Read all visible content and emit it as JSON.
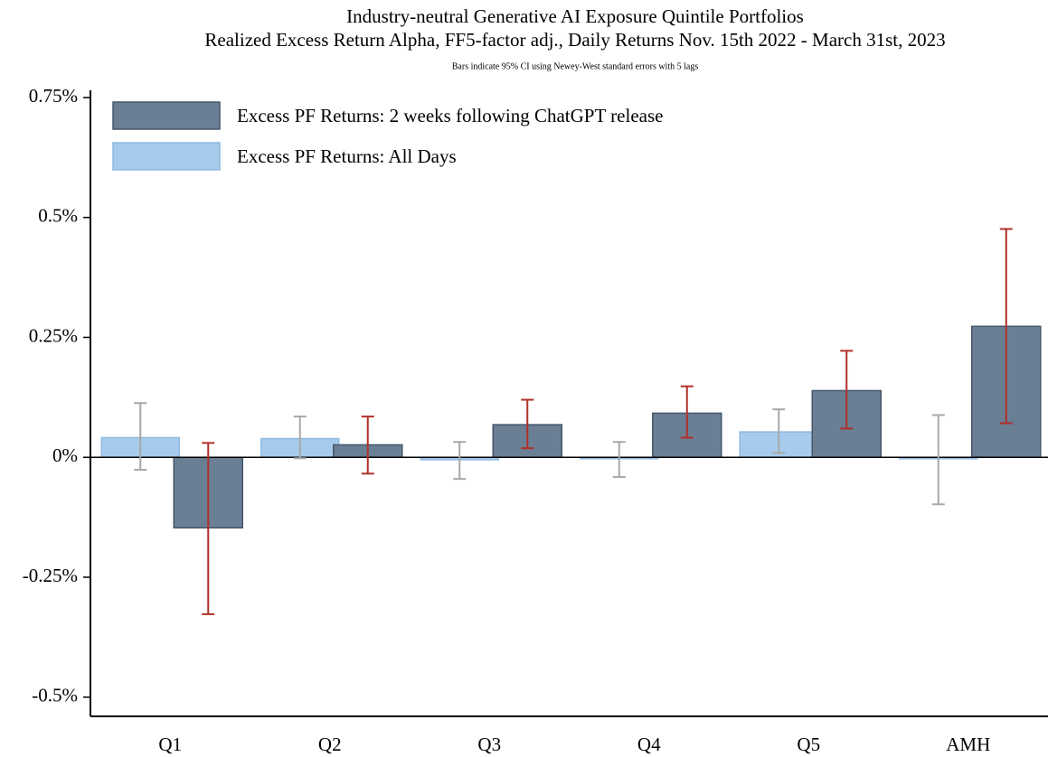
{
  "chart_data": {
    "type": "bar",
    "title": "Industry-neutral Generative AI Exposure Quintile Portfolios",
    "subtitle": "Realized Excess Return Alpha, FF5-factor adj., Daily Returns Nov. 15th 2022 - March 31st, 2023",
    "note": "Bars indicate 95% CI using Newey-West standard errors with 5 lags",
    "categories": [
      "Q1",
      "Q2",
      "Q3",
      "Q4",
      "Q5",
      "AMH"
    ],
    "series": [
      {
        "name": "Excess PF Returns: 2 weeks following ChatGPT release",
        "color": "#6a7f94",
        "error_color": "#b03028",
        "values": [
          -0.147,
          0.026,
          0.068,
          0.092,
          0.139,
          0.273
        ],
        "ci_low": [
          -0.327,
          -0.034,
          0.019,
          0.041,
          0.06,
          0.071
        ],
        "ci_high": [
          0.03,
          0.085,
          0.12,
          0.148,
          0.222,
          0.476
        ]
      },
      {
        "name": "Excess PF Returns: All Days",
        "color": "#a6cbec",
        "error_color": "#a8a8a8",
        "values": [
          0.041,
          0.039,
          -0.005,
          -0.003,
          0.053,
          -0.003
        ],
        "ci_low": [
          -0.026,
          -0.002,
          -0.045,
          -0.041,
          0.009,
          -0.098
        ],
        "ci_high": [
          0.113,
          0.085,
          0.032,
          0.032,
          0.1,
          0.088
        ]
      }
    ],
    "ylim": [
      -0.54,
      0.765
    ],
    "yticks": [
      {
        "value": -0.5,
        "label": "-0.5%"
      },
      {
        "value": -0.25,
        "label": "-0.25%"
      },
      {
        "value": 0,
        "label": "0%"
      },
      {
        "value": 0.25,
        "label": "0.25%"
      },
      {
        "value": 0.5,
        "label": "0.5%"
      },
      {
        "value": 0.75,
        "label": "0.75%"
      }
    ],
    "legend": "top-left"
  }
}
